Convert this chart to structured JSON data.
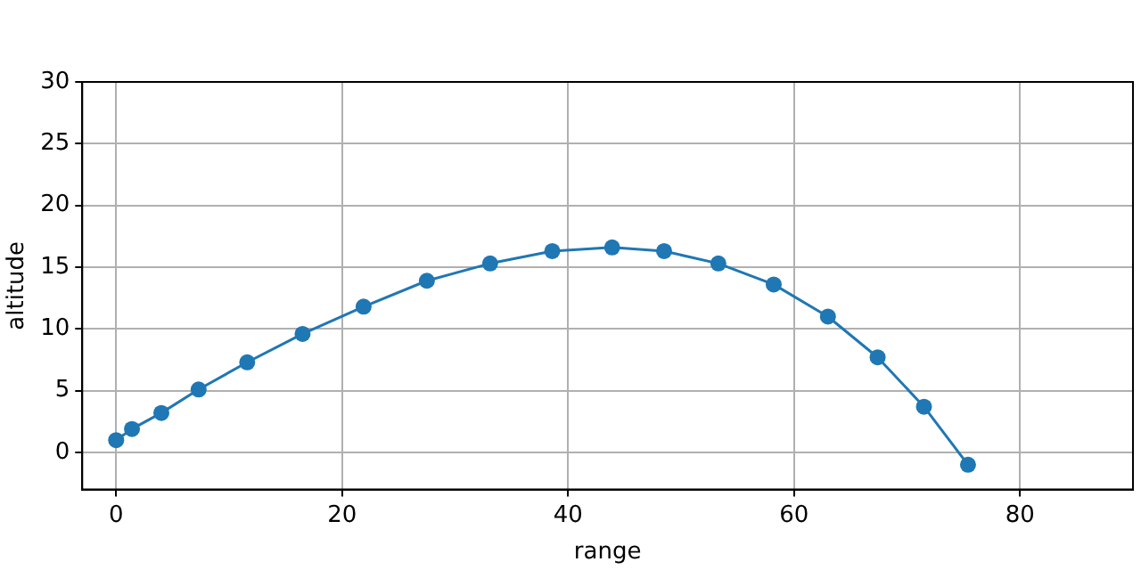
{
  "chart_data": {
    "type": "line",
    "xlabel": "range",
    "ylabel": "altitude",
    "series": [
      {
        "color": "#1f77b4",
        "x": [
          0,
          1.4,
          4.0,
          7.3,
          11.6,
          16.5,
          21.9,
          27.5,
          33.1,
          38.6,
          43.9,
          48.5,
          53.3,
          58.2,
          63.0,
          67.4,
          71.5,
          75.4
        ],
        "values": [
          1.0,
          1.9,
          3.2,
          5.1,
          7.3,
          9.6,
          11.8,
          13.9,
          15.3,
          16.3,
          16.6,
          16.3,
          15.3,
          13.6,
          11.0,
          7.7,
          3.7,
          -1.0
        ]
      }
    ],
    "xlim": [
      -3,
      90
    ],
    "xticks": [
      0,
      20,
      40,
      60,
      80
    ],
    "ylim": [
      -3,
      30
    ],
    "yticks": [
      0,
      5,
      10,
      15,
      20,
      25,
      30
    ],
    "grid": true,
    "marker": "circle",
    "line_style": "solid",
    "legend": false
  }
}
